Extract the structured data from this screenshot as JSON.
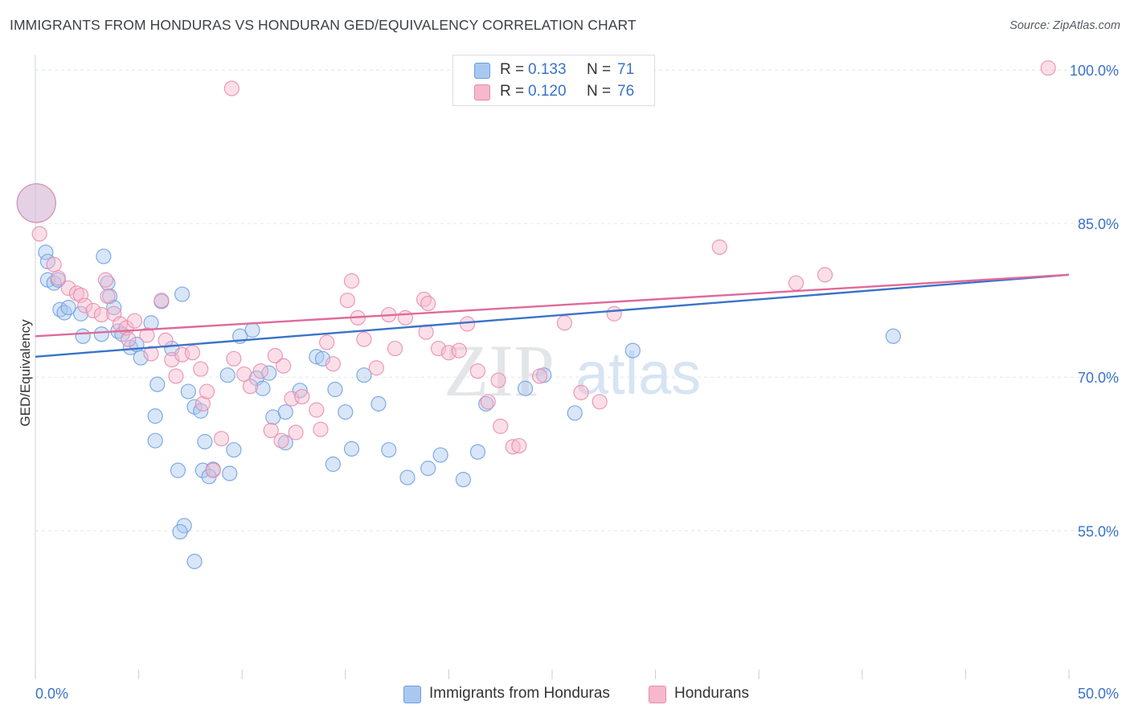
{
  "title": "IMMIGRANTS FROM HONDURAS VS HONDURAN GED/EQUIVALENCY CORRELATION CHART",
  "source": "Source: ZipAtlas.com",
  "watermark": {
    "zip": "ZIP",
    "atlas": "atlas"
  },
  "legend": {
    "rows": [
      {
        "r_label": "R =",
        "r_value": "0.133",
        "n_label": "N =",
        "n_value": "71",
        "color": "#a9c8f0"
      },
      {
        "r_label": "R =",
        "r_value": "0.120",
        "n_label": "N =",
        "n_value": "76",
        "color": "#f6b8cc"
      }
    ]
  },
  "bottom_legend": [
    {
      "label": "Immigrants from Honduras",
      "color": "#a9c8f0"
    },
    {
      "label": "Hondurans",
      "color": "#f6b8cc"
    }
  ],
  "colors": {
    "blue_fill": "#a9c8f0",
    "blue_stroke": "#6c9de0",
    "blue_line": "#3a73c8",
    "pink_fill": "#f6b8cc",
    "pink_stroke": "#e88aaa",
    "pink_line": "#e0699a",
    "tick_label": "#3a73c8",
    "grid": "#e3e6ea"
  },
  "chart_data": {
    "type": "scatter",
    "title": "IMMIGRANTS FROM HONDURAS VS HONDURAN GED/EQUIVALENCY CORRELATION CHART",
    "xlabel": "",
    "ylabel": "GED/Equivalency",
    "xlim": [
      0,
      50
    ],
    "ylim": [
      40.5,
      101.5
    ],
    "x_tick_labels": [
      "0.0%",
      "50.0%"
    ],
    "y_ticks": [
      55,
      70,
      85,
      100
    ],
    "y_tick_labels": [
      "55.0%",
      "70.0%",
      "85.0%",
      "100.0%"
    ],
    "grid": true,
    "legend_position": "top-center",
    "series": [
      {
        "name": "Immigrants from Honduras",
        "r": 0.133,
        "n": 71,
        "trend": {
          "x": [
            0,
            50
          ],
          "y": [
            72.0,
            80.0
          ]
        },
        "points": [
          {
            "x": 0.05,
            "y": 87.0,
            "big": true
          },
          {
            "x": 0.5,
            "y": 82.2
          },
          {
            "x": 0.6,
            "y": 81.3
          },
          {
            "x": 0.6,
            "y": 79.5
          },
          {
            "x": 0.9,
            "y": 79.2
          },
          {
            "x": 1.1,
            "y": 79.5
          },
          {
            "x": 1.2,
            "y": 76.6
          },
          {
            "x": 1.4,
            "y": 76.3
          },
          {
            "x": 1.6,
            "y": 76.8
          },
          {
            "x": 2.2,
            "y": 76.2
          },
          {
            "x": 2.3,
            "y": 74.0
          },
          {
            "x": 3.2,
            "y": 74.2
          },
          {
            "x": 3.3,
            "y": 81.8
          },
          {
            "x": 3.5,
            "y": 79.2
          },
          {
            "x": 3.6,
            "y": 77.9
          },
          {
            "x": 3.8,
            "y": 76.8
          },
          {
            "x": 4.0,
            "y": 74.5
          },
          {
            "x": 4.2,
            "y": 74.2
          },
          {
            "x": 4.6,
            "y": 72.9
          },
          {
            "x": 4.9,
            "y": 73.2
          },
          {
            "x": 5.1,
            "y": 71.9
          },
          {
            "x": 5.6,
            "y": 75.3
          },
          {
            "x": 6.1,
            "y": 77.4
          },
          {
            "x": 5.9,
            "y": 69.3
          },
          {
            "x": 6.6,
            "y": 72.8
          },
          {
            "x": 5.8,
            "y": 66.2
          },
          {
            "x": 7.1,
            "y": 78.1
          },
          {
            "x": 7.7,
            "y": 67.1
          },
          {
            "x": 8.0,
            "y": 66.7
          },
          {
            "x": 5.8,
            "y": 63.8
          },
          {
            "x": 6.9,
            "y": 60.9
          },
          {
            "x": 7.2,
            "y": 55.5
          },
          {
            "x": 7.0,
            "y": 54.9
          },
          {
            "x": 7.7,
            "y": 52.0
          },
          {
            "x": 8.2,
            "y": 63.7
          },
          {
            "x": 8.1,
            "y": 60.9
          },
          {
            "x": 8.6,
            "y": 61.0
          },
          {
            "x": 7.4,
            "y": 68.6
          },
          {
            "x": 8.4,
            "y": 60.3
          },
          {
            "x": 9.3,
            "y": 70.2
          },
          {
            "x": 9.9,
            "y": 74.0
          },
          {
            "x": 10.5,
            "y": 74.6
          },
          {
            "x": 10.7,
            "y": 69.9
          },
          {
            "x": 9.6,
            "y": 62.9
          },
          {
            "x": 9.4,
            "y": 60.6
          },
          {
            "x": 11.0,
            "y": 68.9
          },
          {
            "x": 11.3,
            "y": 70.4
          },
          {
            "x": 11.5,
            "y": 66.1
          },
          {
            "x": 12.1,
            "y": 66.6
          },
          {
            "x": 12.1,
            "y": 63.6
          },
          {
            "x": 12.8,
            "y": 68.7
          },
          {
            "x": 13.6,
            "y": 72.0
          },
          {
            "x": 13.9,
            "y": 71.8
          },
          {
            "x": 14.5,
            "y": 68.8
          },
          {
            "x": 14.4,
            "y": 61.5
          },
          {
            "x": 15.0,
            "y": 66.6
          },
          {
            "x": 15.3,
            "y": 63.0
          },
          {
            "x": 15.9,
            "y": 70.2
          },
          {
            "x": 16.6,
            "y": 67.4
          },
          {
            "x": 17.1,
            "y": 62.9
          },
          {
            "x": 18.0,
            "y": 60.2
          },
          {
            "x": 19.0,
            "y": 61.1
          },
          {
            "x": 19.6,
            "y": 62.4
          },
          {
            "x": 20.7,
            "y": 60.0
          },
          {
            "x": 21.4,
            "y": 62.7
          },
          {
            "x": 21.8,
            "y": 67.4
          },
          {
            "x": 23.7,
            "y": 68.9
          },
          {
            "x": 24.6,
            "y": 70.2
          },
          {
            "x": 26.1,
            "y": 66.5
          },
          {
            "x": 28.9,
            "y": 72.6
          },
          {
            "x": 41.5,
            "y": 74.0
          }
        ]
      },
      {
        "name": "Hondurans",
        "r": 0.12,
        "n": 76,
        "trend": {
          "x": [
            0,
            50
          ],
          "y": [
            74.0,
            80.0
          ]
        },
        "points": [
          {
            "x": 0.05,
            "y": 87.0,
            "big": true
          },
          {
            "x": 0.2,
            "y": 84.0
          },
          {
            "x": 0.9,
            "y": 81.0
          },
          {
            "x": 1.1,
            "y": 79.7
          },
          {
            "x": 1.6,
            "y": 78.7
          },
          {
            "x": 2.0,
            "y": 78.2
          },
          {
            "x": 2.2,
            "y": 78.0
          },
          {
            "x": 2.4,
            "y": 77.0
          },
          {
            "x": 2.8,
            "y": 76.5
          },
          {
            "x": 3.2,
            "y": 76.1
          },
          {
            "x": 3.4,
            "y": 79.5
          },
          {
            "x": 3.5,
            "y": 77.9
          },
          {
            "x": 3.8,
            "y": 76.2
          },
          {
            "x": 4.1,
            "y": 75.2
          },
          {
            "x": 4.4,
            "y": 74.8
          },
          {
            "x": 4.5,
            "y": 73.7
          },
          {
            "x": 4.8,
            "y": 75.5
          },
          {
            "x": 5.4,
            "y": 74.1
          },
          {
            "x": 5.6,
            "y": 72.3
          },
          {
            "x": 6.1,
            "y": 77.5
          },
          {
            "x": 6.3,
            "y": 73.6
          },
          {
            "x": 6.6,
            "y": 71.7
          },
          {
            "x": 7.1,
            "y": 72.2
          },
          {
            "x": 7.6,
            "y": 72.4
          },
          {
            "x": 8.0,
            "y": 70.8
          },
          {
            "x": 6.8,
            "y": 70.1
          },
          {
            "x": 8.1,
            "y": 67.4
          },
          {
            "x": 8.3,
            "y": 68.6
          },
          {
            "x": 8.6,
            "y": 60.9
          },
          {
            "x": 9.0,
            "y": 64.0
          },
          {
            "x": 9.6,
            "y": 71.8
          },
          {
            "x": 10.1,
            "y": 70.3
          },
          {
            "x": 10.4,
            "y": 69.1
          },
          {
            "x": 10.9,
            "y": 70.6
          },
          {
            "x": 11.6,
            "y": 72.1
          },
          {
            "x": 12.0,
            "y": 71.1
          },
          {
            "x": 12.4,
            "y": 67.9
          },
          {
            "x": 11.4,
            "y": 64.8
          },
          {
            "x": 11.9,
            "y": 63.8
          },
          {
            "x": 12.6,
            "y": 64.6
          },
          {
            "x": 12.9,
            "y": 68.1
          },
          {
            "x": 13.6,
            "y": 66.8
          },
          {
            "x": 13.8,
            "y": 64.9
          },
          {
            "x": 14.1,
            "y": 73.4
          },
          {
            "x": 14.4,
            "y": 71.3
          },
          {
            "x": 15.1,
            "y": 77.5
          },
          {
            "x": 15.3,
            "y": 79.4
          },
          {
            "x": 15.6,
            "y": 75.8
          },
          {
            "x": 15.9,
            "y": 73.7
          },
          {
            "x": 16.5,
            "y": 70.9
          },
          {
            "x": 17.1,
            "y": 76.1
          },
          {
            "x": 17.4,
            "y": 72.8
          },
          {
            "x": 17.9,
            "y": 75.8
          },
          {
            "x": 18.8,
            "y": 77.6
          },
          {
            "x": 19.0,
            "y": 77.2
          },
          {
            "x": 18.9,
            "y": 74.4
          },
          {
            "x": 19.5,
            "y": 72.8
          },
          {
            "x": 20.0,
            "y": 72.4
          },
          {
            "x": 20.5,
            "y": 72.6
          },
          {
            "x": 20.9,
            "y": 75.2
          },
          {
            "x": 21.4,
            "y": 70.6
          },
          {
            "x": 21.9,
            "y": 67.6
          },
          {
            "x": 22.4,
            "y": 69.7
          },
          {
            "x": 22.5,
            "y": 65.2
          },
          {
            "x": 23.1,
            "y": 63.2
          },
          {
            "x": 23.4,
            "y": 63.3
          },
          {
            "x": 24.4,
            "y": 70.1
          },
          {
            "x": 25.6,
            "y": 75.3
          },
          {
            "x": 26.4,
            "y": 68.5
          },
          {
            "x": 27.3,
            "y": 67.6
          },
          {
            "x": 28.0,
            "y": 76.2
          },
          {
            "x": 33.1,
            "y": 82.7
          },
          {
            "x": 36.8,
            "y": 79.2
          },
          {
            "x": 38.2,
            "y": 80.0
          },
          {
            "x": 49.0,
            "y": 100.2
          },
          {
            "x": 9.5,
            "y": 98.2
          }
        ]
      }
    ]
  }
}
